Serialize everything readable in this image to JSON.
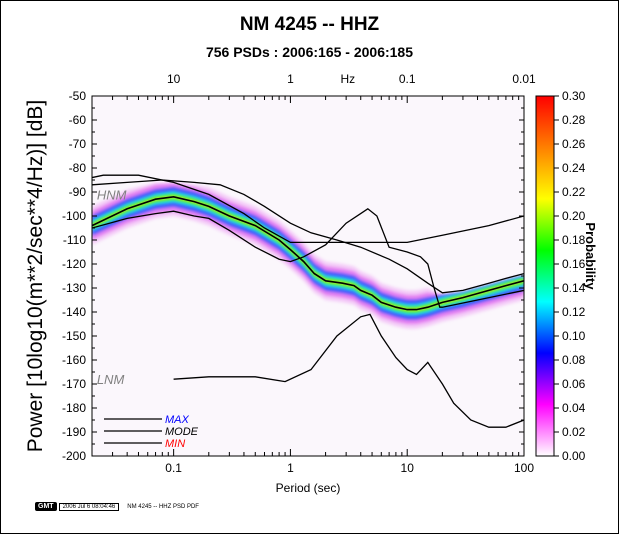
{
  "chart_data": {
    "type": "heatmap",
    "title": "NM 4245 -- HHZ",
    "subtitle": "756 PSDs : 2006:165 - 2006:185",
    "xlabel": "Period (sec)",
    "ylabel": "Power [10log10(m**2/sec**4/Hz)] [dB]",
    "x_top_label": "Hz",
    "x_scale": "log",
    "xlim": [
      0.02,
      100
    ],
    "ylim": [
      -200,
      -50
    ],
    "x_ticks": [
      {
        "v": 0.1,
        "label": "0.1"
      },
      {
        "v": 1,
        "label": "1"
      },
      {
        "v": 10,
        "label": "10"
      },
      {
        "v": 100,
        "label": "100"
      }
    ],
    "x_top_ticks": [
      {
        "v": 0.1,
        "label": "10"
      },
      {
        "v": 1,
        "label": "1"
      },
      {
        "v": 10,
        "label": "0.1"
      },
      {
        "v": 100,
        "label": "0.01"
      }
    ],
    "y_ticks": [
      -50,
      -60,
      -70,
      -80,
      -90,
      -100,
      -110,
      -120,
      -130,
      -140,
      -150,
      -160,
      -170,
      -180,
      -190,
      -200
    ],
    "colorbar": {
      "label": "Probability",
      "range": [
        0,
        0.3
      ],
      "ticks": [
        "0.30",
        "0.28",
        "0.26",
        "0.24",
        "0.22",
        "0.20",
        "0.18",
        "0.16",
        "0.14",
        "0.12",
        "0.10",
        "0.08",
        "0.06",
        "0.04",
        "0.02",
        "0.00"
      ],
      "colors": [
        "#ffffff",
        "#ff00ff",
        "#0000ff",
        "#00ffff",
        "#00ff00",
        "#ffff00",
        "#ff8000",
        "#ff0000"
      ]
    },
    "annotations": [
      {
        "text": "HNM",
        "x": 0.022,
        "y": -91,
        "color": "#808080"
      },
      {
        "text": "LNM",
        "x": 0.022,
        "y": -168,
        "color": "#808080"
      }
    ],
    "legend": {
      "placement": "bottom-left",
      "items": [
        {
          "label": "MAX",
          "color": "#0000ff"
        },
        {
          "label": "MODE",
          "color": "#000000"
        },
        {
          "label": "MIN",
          "color": "#ff0000"
        }
      ]
    },
    "series": [
      {
        "name": "HNM",
        "points": [
          [
            0.02,
            -84
          ],
          [
            0.025,
            -83
          ],
          [
            0.05,
            -83
          ],
          [
            0.1,
            -86
          ],
          [
            0.2,
            -91
          ],
          [
            0.4,
            -99
          ],
          [
            0.6,
            -105
          ],
          [
            1,
            -111
          ],
          [
            2,
            -111
          ],
          [
            5,
            -111
          ],
          [
            10,
            -111
          ],
          [
            20,
            -108
          ],
          [
            50,
            -104
          ],
          [
            100,
            -100
          ]
        ]
      },
      {
        "name": "LNM",
        "points": [
          [
            0.1,
            -168
          ],
          [
            0.2,
            -167
          ],
          [
            0.5,
            -167
          ],
          [
            0.9,
            -169
          ],
          [
            1.5,
            -164
          ],
          [
            2.5,
            -150
          ],
          [
            4,
            -142
          ],
          [
            4.8,
            -141
          ],
          [
            6,
            -150
          ],
          [
            8,
            -159
          ],
          [
            10,
            -164
          ],
          [
            12,
            -166
          ],
          [
            15,
            -161
          ],
          [
            20,
            -170
          ],
          [
            25,
            -178
          ],
          [
            35,
            -185
          ],
          [
            50,
            -188
          ],
          [
            70,
            -188
          ],
          [
            100,
            -185
          ]
        ]
      },
      {
        "name": "MAX",
        "points": [
          [
            0.02,
            -87
          ],
          [
            0.04,
            -86
          ],
          [
            0.08,
            -85
          ],
          [
            0.15,
            -86
          ],
          [
            0.25,
            -87
          ],
          [
            0.4,
            -91
          ],
          [
            0.6,
            -96
          ],
          [
            1,
            -103
          ],
          [
            1.5,
            -107
          ],
          [
            2.5,
            -110
          ],
          [
            4,
            -113
          ],
          [
            7,
            -118
          ],
          [
            10,
            -122
          ],
          [
            15,
            -128
          ],
          [
            20,
            -132
          ],
          [
            30,
            -131
          ],
          [
            50,
            -128
          ],
          [
            70,
            -126
          ],
          [
            100,
            -124
          ]
        ]
      },
      {
        "name": "MODE",
        "points": [
          [
            0.02,
            -104
          ],
          [
            0.04,
            -97
          ],
          [
            0.07,
            -93
          ],
          [
            0.1,
            -92
          ],
          [
            0.15,
            -94
          ],
          [
            0.2,
            -96
          ],
          [
            0.3,
            -100
          ],
          [
            0.5,
            -104
          ],
          [
            0.8,
            -110
          ],
          [
            1,
            -114
          ],
          [
            1.3,
            -119
          ],
          [
            1.6,
            -124
          ],
          [
            2,
            -127
          ],
          [
            2.8,
            -128
          ],
          [
            3.5,
            -129
          ],
          [
            4,
            -131
          ],
          [
            5,
            -133
          ],
          [
            6,
            -136
          ],
          [
            8,
            -138
          ],
          [
            10,
            -139
          ],
          [
            12,
            -139
          ],
          [
            15,
            -138
          ],
          [
            20,
            -136
          ],
          [
            30,
            -134
          ],
          [
            50,
            -131
          ],
          [
            70,
            -129
          ],
          [
            100,
            -127
          ]
        ]
      },
      {
        "name": "MIN",
        "points": [
          [
            0.02,
            -105
          ],
          [
            0.04,
            -101
          ],
          [
            0.07,
            -99
          ],
          [
            0.1,
            -98
          ],
          [
            0.15,
            -100
          ],
          [
            0.2,
            -101
          ],
          [
            0.3,
            -106
          ],
          [
            0.5,
            -113
          ],
          [
            0.8,
            -118
          ],
          [
            1,
            -119
          ],
          [
            1.3,
            -117
          ],
          [
            2,
            -112
          ],
          [
            3,
            -103
          ],
          [
            4,
            -99
          ],
          [
            4.6,
            -97
          ],
          [
            5.5,
            -100
          ],
          [
            7,
            -113
          ],
          [
            10,
            -115
          ],
          [
            13,
            -117
          ],
          [
            15,
            -120
          ],
          [
            17,
            -130
          ],
          [
            19,
            -138
          ],
          [
            20,
            -138
          ],
          [
            40,
            -135
          ],
          [
            100,
            -131
          ]
        ]
      }
    ]
  },
  "footer": {
    "logo": "GMT",
    "timestamp": "2006 Jul  6 08:04:46",
    "caption": "NM 4245 -- HHZ PSD PDF"
  }
}
